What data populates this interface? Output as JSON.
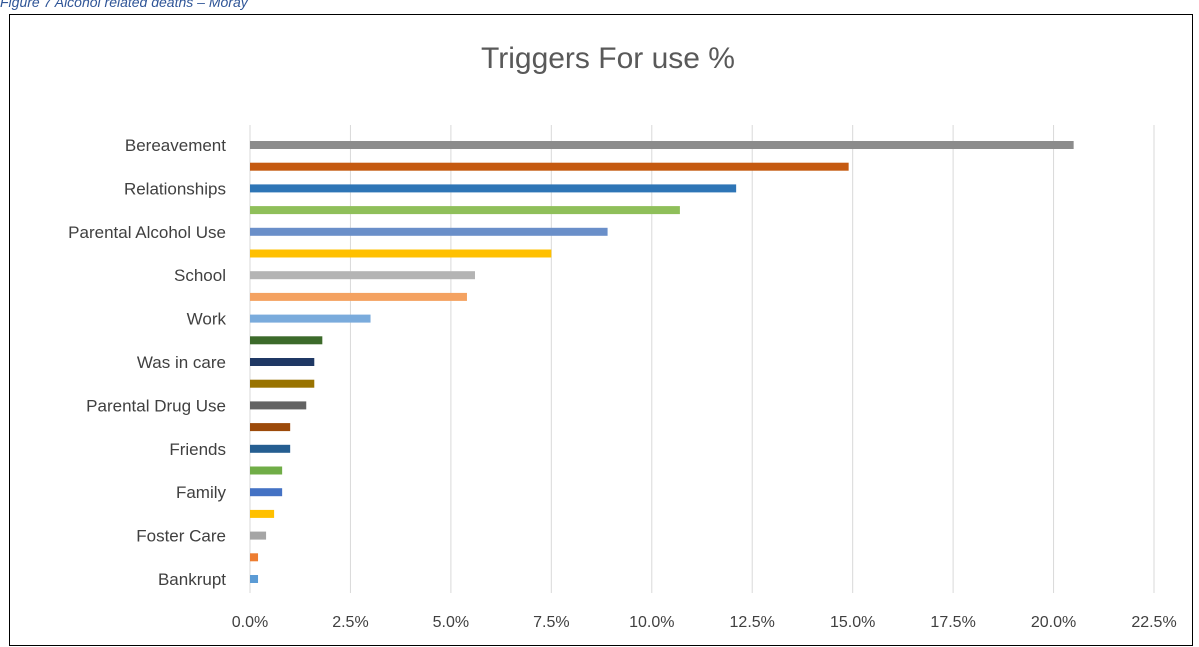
{
  "caption": "Figure 7 Alcohol related deaths – Moray",
  "chart_data": {
    "type": "bar",
    "orientation": "horizontal",
    "title": "Triggers For use %",
    "xlabel": "",
    "ylabel": "",
    "xlim": [
      0,
      22.5
    ],
    "x_ticks": [
      "0.0%",
      "2.5%",
      "5.0%",
      "7.5%",
      "10.0%",
      "12.5%",
      "15.0%",
      "17.5%",
      "20.0%",
      "22.5%"
    ],
    "grid": true,
    "legend": "none",
    "categories": [
      "Bereavement",
      "",
      "Relationships",
      "",
      "Parental Alcohol Use",
      "",
      "School",
      "",
      "Work",
      "",
      "Was in care",
      "",
      "Parental Drug Use",
      "",
      "Friends",
      "",
      "Family",
      "",
      "Foster Care",
      "",
      "Bankrupt"
    ],
    "values": [
      20.5,
      14.9,
      12.1,
      10.7,
      8.9,
      7.5,
      5.6,
      5.4,
      3.0,
      1.8,
      1.6,
      1.6,
      1.4,
      1.0,
      1.0,
      0.8,
      0.8,
      0.6,
      0.4,
      0.2,
      0.2
    ],
    "colors": [
      "#8c8c8c",
      "#c55a11",
      "#2e75b6",
      "#8fbf5a",
      "#6a8fc9",
      "#ffc000",
      "#b4b4b4",
      "#f4a261",
      "#7aabdc",
      "#3c6a2a",
      "#1f3864",
      "#997300",
      "#636363",
      "#9c4a0a",
      "#255e91",
      "#70ad47",
      "#4472c4",
      "#ffc000",
      "#a5a5a5",
      "#ed7d31",
      "#5b9bd5"
    ]
  }
}
